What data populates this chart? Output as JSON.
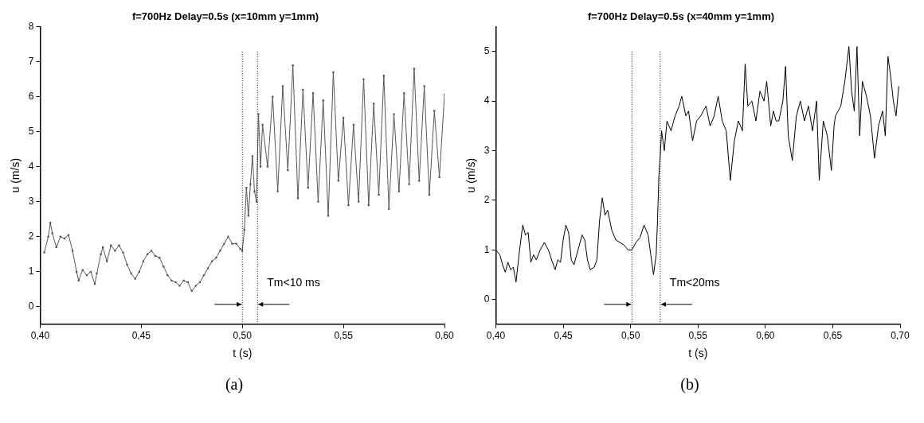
{
  "chart_data": [
    {
      "type": "line",
      "title": "f=700Hz Delay=0.5s (x=10mm y=1mm)",
      "xlabel": "t (s)",
      "ylabel": "u (m/s)",
      "marker": "square",
      "grid": false,
      "legend": false,
      "xlim": [
        0.4,
        0.6
      ],
      "xticks": [
        {
          "value": 0.4,
          "label": "0,40"
        },
        {
          "value": 0.45,
          "label": "0,45"
        },
        {
          "value": 0.5,
          "label": "0,50"
        },
        {
          "value": 0.55,
          "label": "0,55"
        },
        {
          "value": 0.6,
          "label": "0,60"
        }
      ],
      "ylim": [
        -0.5,
        8
      ],
      "yticks": [
        0,
        1,
        2,
        3,
        4,
        5,
        6,
        7,
        8
      ],
      "ref_lines": [
        {
          "axis": "x",
          "value": 0.5,
          "line_style": "dotted",
          "color": "#000000"
        },
        {
          "axis": "x",
          "value": 0.5075,
          "line_style": "dotted",
          "color": "#000000",
          "label": "Tm<10 ms"
        }
      ],
      "annotations": [
        "(a)"
      ],
      "series": [
        {
          "color": "#555555",
          "x": [
            0.402,
            0.404,
            0.405,
            0.406,
            0.408,
            0.41,
            0.412,
            0.414,
            0.416,
            0.418,
            0.419,
            0.421,
            0.423,
            0.425,
            0.427,
            0.428,
            0.43,
            0.431,
            0.433,
            0.435,
            0.437,
            0.439,
            0.441,
            0.443,
            0.445,
            0.447,
            0.449,
            0.451,
            0.453,
            0.455,
            0.457,
            0.459,
            0.461,
            0.463,
            0.465,
            0.467,
            0.469,
            0.471,
            0.473,
            0.475,
            0.477,
            0.479,
            0.481,
            0.483,
            0.485,
            0.487,
            0.489,
            0.491,
            0.493,
            0.495,
            0.497,
            0.499,
            0.5,
            0.501,
            0.502,
            0.503,
            0.504,
            0.505,
            0.506,
            0.507,
            0.508,
            0.509,
            0.51,
            0.5125,
            0.515,
            0.5175,
            0.52,
            0.5225,
            0.525,
            0.5275,
            0.53,
            0.5325,
            0.535,
            0.5375,
            0.54,
            0.5425,
            0.545,
            0.5475,
            0.55,
            0.5525,
            0.555,
            0.5575,
            0.56,
            0.5625,
            0.565,
            0.5675,
            0.57,
            0.5725,
            0.575,
            0.5775,
            0.58,
            0.5825,
            0.585,
            0.5875,
            0.59,
            0.5925,
            0.595,
            0.5975,
            0.6
          ],
          "values": [
            1.55,
            2.0,
            2.4,
            2.1,
            1.7,
            2.0,
            1.95,
            2.05,
            1.6,
            1.0,
            0.75,
            1.05,
            0.9,
            1.0,
            0.65,
            0.95,
            1.5,
            1.7,
            1.3,
            1.75,
            1.6,
            1.75,
            1.55,
            1.2,
            0.95,
            0.8,
            1.0,
            1.3,
            1.5,
            1.6,
            1.45,
            1.4,
            1.15,
            0.9,
            0.75,
            0.7,
            0.6,
            0.75,
            0.7,
            0.45,
            0.6,
            0.7,
            0.9,
            1.1,
            1.3,
            1.4,
            1.6,
            1.8,
            2.0,
            1.8,
            1.8,
            1.65,
            1.6,
            2.2,
            3.4,
            2.6,
            3.5,
            4.3,
            3.3,
            3.0,
            5.5,
            4.0,
            5.2,
            4.0,
            6.0,
            3.3,
            6.3,
            3.9,
            6.9,
            3.1,
            6.2,
            3.4,
            6.1,
            3.0,
            5.9,
            2.6,
            6.7,
            3.6,
            5.4,
            2.9,
            5.2,
            3.0,
            6.5,
            2.9,
            5.8,
            3.2,
            6.6,
            2.8,
            5.5,
            3.3,
            6.1,
            3.5,
            6.8,
            3.6,
            6.3,
            3.2,
            5.6,
            3.7,
            6.05
          ]
        }
      ]
    },
    {
      "type": "line",
      "title": "f=700Hz Delay=0.5s (x=40mm y=1mm)",
      "xlabel": "t (s)",
      "ylabel": "u (m/s)",
      "marker": "none",
      "grid": false,
      "legend": false,
      "xlim": [
        0.4,
        0.7
      ],
      "xticks": [
        {
          "value": 0.4,
          "label": "0,40"
        },
        {
          "value": 0.45,
          "label": "0,45"
        },
        {
          "value": 0.5,
          "label": "0,50"
        },
        {
          "value": 0.55,
          "label": "0,55"
        },
        {
          "value": 0.6,
          "label": "0,60"
        },
        {
          "value": 0.65,
          "label": "0,65"
        },
        {
          "value": 0.7,
          "label": "0,70"
        }
      ],
      "ylim": [
        -0.5,
        5.5
      ],
      "yticks": [
        0,
        1,
        2,
        3,
        4,
        5
      ],
      "ref_lines": [
        {
          "axis": "x",
          "value": 0.501,
          "line_style": "dotted",
          "color": "#000000"
        },
        {
          "axis": "x",
          "value": 0.522,
          "line_style": "dotted",
          "color": "#000000",
          "label": "Tm<20ms"
        }
      ],
      "annotations": [
        "(b)"
      ],
      "series": [
        {
          "color": "#000000",
          "x": [
            0.4,
            0.403,
            0.405,
            0.407,
            0.409,
            0.411,
            0.413,
            0.415,
            0.417,
            0.419,
            0.42,
            0.422,
            0.424,
            0.426,
            0.428,
            0.43,
            0.433,
            0.436,
            0.439,
            0.442,
            0.444,
            0.446,
            0.448,
            0.45,
            0.452,
            0.454,
            0.456,
            0.458,
            0.46,
            0.462,
            0.464,
            0.466,
            0.468,
            0.47,
            0.473,
            0.475,
            0.477,
            0.479,
            0.481,
            0.483,
            0.486,
            0.489,
            0.492,
            0.495,
            0.498,
            0.501,
            0.504,
            0.507,
            0.51,
            0.513,
            0.515,
            0.517,
            0.519,
            0.52,
            0.521,
            0.522,
            0.523,
            0.525,
            0.527,
            0.53,
            0.533,
            0.536,
            0.538,
            0.541,
            0.543,
            0.546,
            0.549,
            0.552,
            0.556,
            0.559,
            0.562,
            0.565,
            0.568,
            0.571,
            0.574,
            0.577,
            0.58,
            0.583,
            0.585,
            0.587,
            0.59,
            0.593,
            0.596,
            0.599,
            0.601,
            0.604,
            0.606,
            0.608,
            0.61,
            0.613,
            0.615,
            0.617,
            0.62,
            0.623,
            0.626,
            0.629,
            0.632,
            0.635,
            0.638,
            0.64,
            0.643,
            0.646,
            0.649,
            0.651,
            0.652,
            0.656,
            0.659,
            0.662,
            0.664,
            0.666,
            0.668,
            0.67,
            0.672,
            0.675,
            0.678,
            0.681,
            0.684,
            0.687,
            0.689,
            0.691,
            0.693,
            0.695,
            0.697,
            0.699
          ],
          "values": [
            1.0,
            0.9,
            0.7,
            0.55,
            0.75,
            0.6,
            0.65,
            0.35,
            0.85,
            1.3,
            1.5,
            1.3,
            1.35,
            0.75,
            0.9,
            0.8,
            1.0,
            1.15,
            1.0,
            0.75,
            0.6,
            0.8,
            0.75,
            1.2,
            1.5,
            1.35,
            0.8,
            0.7,
            0.9,
            1.1,
            1.3,
            1.2,
            0.8,
            0.6,
            0.65,
            0.8,
            1.6,
            2.05,
            1.7,
            1.8,
            1.4,
            1.2,
            1.15,
            1.1,
            1.0,
            1.0,
            1.15,
            1.25,
            1.5,
            1.3,
            0.9,
            0.5,
            0.9,
            1.6,
            2.5,
            2.9,
            3.4,
            3.0,
            3.6,
            3.4,
            3.7,
            3.9,
            4.1,
            3.7,
            3.8,
            3.2,
            3.6,
            3.7,
            3.9,
            3.5,
            3.7,
            4.1,
            3.6,
            3.4,
            2.4,
            3.2,
            3.6,
            3.4,
            4.75,
            3.9,
            4.0,
            3.6,
            4.2,
            4.0,
            4.4,
            3.5,
            3.8,
            3.6,
            3.6,
            4.0,
            4.7,
            3.3,
            2.8,
            3.7,
            4.0,
            3.6,
            3.9,
            3.4,
            4.0,
            2.4,
            3.6,
            3.3,
            2.6,
            3.5,
            3.7,
            3.9,
            4.4,
            5.1,
            4.2,
            3.8,
            5.1,
            3.3,
            4.4,
            4.1,
            3.7,
            2.85,
            3.5,
            3.8,
            3.3,
            4.9,
            4.5,
            4.0,
            3.7,
            4.3
          ]
        }
      ]
    }
  ]
}
